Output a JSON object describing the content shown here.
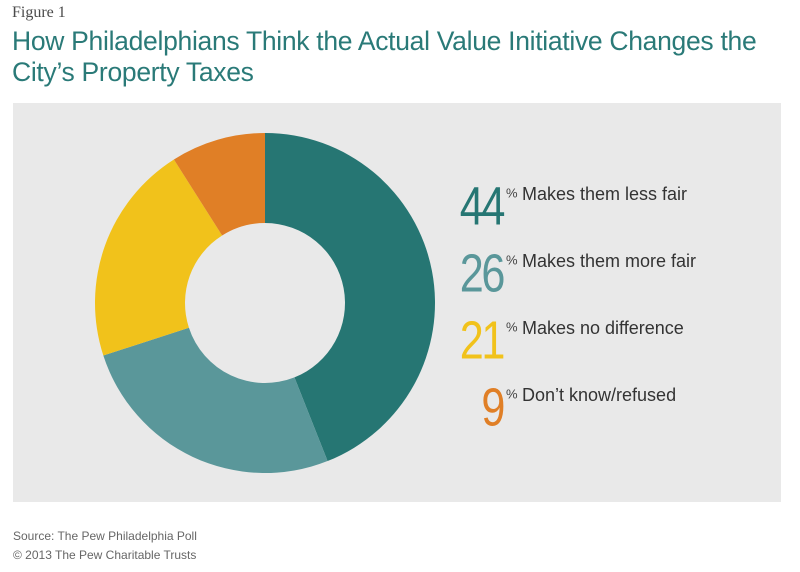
{
  "chart_data": {
    "type": "donut",
    "figure_label": "Figure 1",
    "title": "How Philadelphians Think the Actual Value Initiative Changes the City’s Property Taxes",
    "categories": [
      "Makes them less fair",
      "Makes them more fair",
      "Makes no difference",
      "Don’t know/refused"
    ],
    "values": [
      44,
      26,
      21,
      9
    ],
    "unit": "%",
    "colors": [
      "#267673",
      "#5a979a",
      "#f1c21b",
      "#e07f26"
    ],
    "source": "Source: The Pew Philadelphia Poll",
    "credit": "© 2013 The Pew Charitable Trusts"
  }
}
